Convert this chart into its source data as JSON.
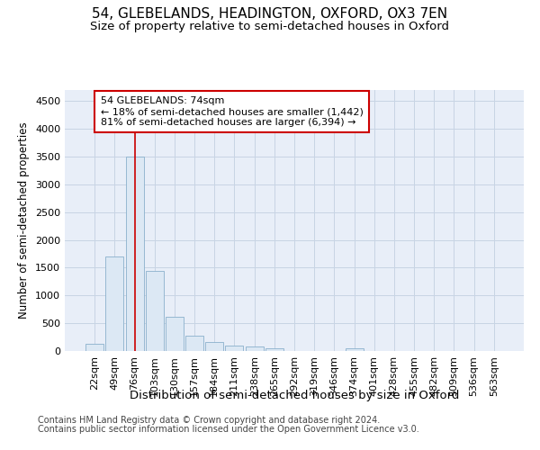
{
  "title1": "54, GLEBELANDS, HEADINGTON, OXFORD, OX3 7EN",
  "title2": "Size of property relative to semi-detached houses in Oxford",
  "xlabel": "Distribution of semi-detached houses by size in Oxford",
  "ylabel": "Number of semi-detached properties",
  "footnote1": "Contains HM Land Registry data © Crown copyright and database right 2024.",
  "footnote2": "Contains public sector information licensed under the Open Government Licence v3.0.",
  "categories": [
    "22sqm",
    "49sqm",
    "76sqm",
    "103sqm",
    "130sqm",
    "157sqm",
    "184sqm",
    "211sqm",
    "238sqm",
    "265sqm",
    "292sqm",
    "319sqm",
    "346sqm",
    "374sqm",
    "401sqm",
    "428sqm",
    "455sqm",
    "482sqm",
    "509sqm",
    "536sqm",
    "563sqm"
  ],
  "values": [
    130,
    1700,
    3500,
    1450,
    620,
    270,
    160,
    90,
    75,
    55,
    0,
    0,
    0,
    50,
    0,
    0,
    0,
    0,
    0,
    0,
    0
  ],
  "bar_color": "#dce8f4",
  "bar_edge_color": "#8ab0cc",
  "highlight_bar_index": 2,
  "red_line_color": "#cc0000",
  "annotation_line1": "54 GLEBELANDS: 74sqm",
  "annotation_line2": "← 18% of semi-detached houses are smaller (1,442)",
  "annotation_line3": "81% of semi-detached houses are larger (6,394) →",
  "annotation_box_color": "#ffffff",
  "annotation_box_edge": "#cc0000",
  "ylim": [
    0,
    4700
  ],
  "yticks": [
    0,
    500,
    1000,
    1500,
    2000,
    2500,
    3000,
    3500,
    4000,
    4500
  ],
  "grid_color": "#c8d4e4",
  "background_color": "#e8eef8",
  "title1_fontsize": 11,
  "title2_fontsize": 9.5,
  "xlabel_fontsize": 9.5,
  "ylabel_fontsize": 8.5,
  "tick_fontsize": 8,
  "annot_fontsize": 8,
  "footnote_fontsize": 7
}
